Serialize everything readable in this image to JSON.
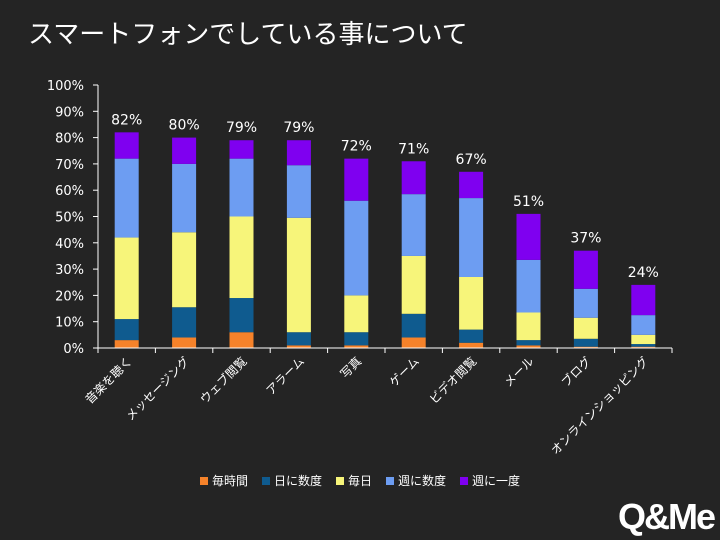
{
  "title": "スマートフォンでしている事について",
  "logo": "Q&Me",
  "chart_data": {
    "type": "bar",
    "stacked": true,
    "ylim": [
      0,
      100
    ],
    "yticks": [
      "0%",
      "10%",
      "20%",
      "30%",
      "40%",
      "50%",
      "60%",
      "70%",
      "80%",
      "90%",
      "100%"
    ],
    "categories": [
      "音楽を聴く",
      "メッセージング",
      "ウェブ閲覧",
      "アラーム",
      "写真",
      "ゲーム",
      "ビデオ閲覧",
      "メール",
      "ブログ",
      "オンラインショッピング"
    ],
    "totals": [
      "82%",
      "80%",
      "79%",
      "79%",
      "72%",
      "71%",
      "67%",
      "51%",
      "37%",
      "24%"
    ],
    "series": [
      {
        "name": "毎時間",
        "color": "#F5822A",
        "values": [
          3,
          4,
          6,
          1,
          1,
          4,
          2,
          1,
          0.5,
          0.5
        ]
      },
      {
        "name": "日に数度",
        "color": "#0F5B8F",
        "values": [
          8,
          11.5,
          13,
          5,
          5,
          9,
          5,
          2,
          3,
          1
        ]
      },
      {
        "name": "毎日",
        "color": "#F7F57A",
        "values": [
          31,
          28.5,
          31,
          43.5,
          14,
          22,
          20,
          10.5,
          8,
          3.5
        ]
      },
      {
        "name": "週に数度",
        "color": "#6D9DF2",
        "values": [
          30,
          26,
          22,
          20,
          36,
          23.5,
          30,
          20,
          11,
          7.5
        ]
      },
      {
        "name": "週に一度",
        "color": "#7F00F0",
        "values": [
          10,
          10,
          7,
          9.5,
          16,
          12.5,
          10,
          17.5,
          14.5,
          11.5
        ]
      }
    ]
  }
}
